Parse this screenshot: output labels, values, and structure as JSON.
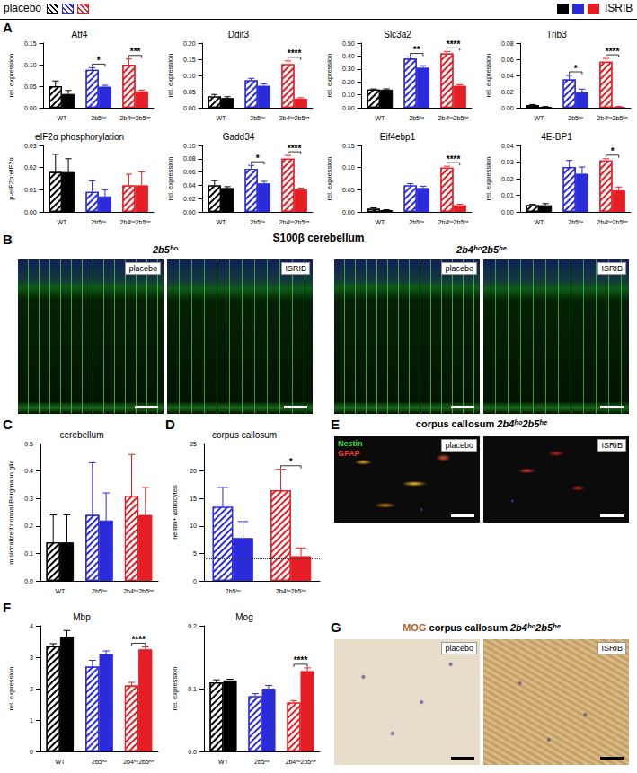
{
  "panel_labels": [
    "A",
    "B",
    "C",
    "D",
    "E",
    "F",
    "G"
  ],
  "chart_data": [
    {
      "type": "bar",
      "title": "Atf4",
      "y_label": "rel. expression",
      "categories": [
        "WT",
        "2b5ʰᵒ",
        "2b4ʰᵒ2b5ʰᵉ"
      ],
      "colors": [
        "#000000",
        "#2b2bd9",
        "#e51e25"
      ],
      "series": [
        {
          "name": "placebo",
          "marker": "hatched",
          "values": [
            0.05,
            0.088,
            0.1
          ],
          "errors": [
            0.012,
            0.005,
            0.013
          ]
        },
        {
          "name": "ISRIB",
          "marker": "solid",
          "values": [
            0.032,
            0.049,
            0.038
          ],
          "errors": [
            0.008,
            0.003,
            0.003
          ]
        }
      ],
      "ylim": [
        0,
        0.15
      ],
      "yticks": [
        {
          "value": 0,
          "label": "0.00"
        },
        0.05,
        {
          "value": 0.1,
          "label": "0.10"
        },
        0.15
      ],
      "annotations": [
        {
          "category": "2b5ʰᵒ",
          "label": "*"
        },
        {
          "category": "2b4ʰᵒ2b5ʰᵉ",
          "label": "***"
        }
      ]
    },
    {
      "type": "bar",
      "title": "Ddit3",
      "y_label": "rel. expression",
      "categories": [
        "WT",
        "2b5ʰᵒ",
        "2b4ʰᵒ2b5ʰᵉ"
      ],
      "colors": [
        "#000000",
        "#2b2bd9",
        "#e51e25"
      ],
      "series": [
        {
          "name": "placebo",
          "marker": "hatched",
          "values": [
            0.035,
            0.085,
            0.135
          ],
          "errors": [
            0.006,
            0.006,
            0.01
          ]
        },
        {
          "name": "ISRIB",
          "marker": "solid",
          "values": [
            0.03,
            0.068,
            0.028
          ],
          "errors": [
            0.004,
            0.006,
            0.003
          ]
        }
      ],
      "ylim": [
        0,
        0.2
      ],
      "yticks": [
        {
          "value": 0,
          "label": "0.00"
        },
        0.05,
        {
          "value": 0.1,
          "label": "0.10"
        },
        0.15,
        {
          "value": 0.2,
          "label": "0.20"
        }
      ],
      "annotations": [
        {
          "category": "2b4ʰᵒ2b5ʰᵉ",
          "label": "****"
        }
      ]
    },
    {
      "type": "bar",
      "title": "Slc3a2",
      "y_label": "rel. expression",
      "categories": [
        "WT",
        "2b5ʰᵒ",
        "2b4ʰᵒ2b5ʰᵉ"
      ],
      "colors": [
        "#000000",
        "#2b2bd9",
        "#e51e25"
      ],
      "series": [
        {
          "name": "placebo",
          "marker": "hatched",
          "values": [
            0.14,
            0.38,
            0.42
          ],
          "errors": [
            0.005,
            0.012,
            0.015
          ]
        },
        {
          "name": "ISRIB",
          "marker": "solid",
          "values": [
            0.14,
            0.31,
            0.17
          ],
          "errors": [
            0.006,
            0.015,
            0.008
          ]
        }
      ],
      "ylim": [
        0,
        0.5
      ],
      "yticks": [
        {
          "value": 0,
          "label": "0.00"
        },
        {
          "value": 0.1,
          "label": "0.10"
        },
        {
          "value": 0.2,
          "label": "0.20"
        },
        {
          "value": 0.3,
          "label": "0.30"
        },
        {
          "value": 0.4,
          "label": "0.40"
        },
        {
          "value": 0.5,
          "label": "0.50"
        }
      ],
      "annotations": [
        {
          "category": "2b5ʰᵒ",
          "label": "**"
        },
        {
          "category": "2b4ʰᵒ2b5ʰᵉ",
          "label": "****"
        }
      ]
    },
    {
      "type": "bar",
      "title": "Trib3",
      "y_label": "rel. expression",
      "categories": [
        "WT",
        "2b5ʰᵒ",
        "2b4ʰᵒ2b5ʰᵉ"
      ],
      "colors": [
        "#000000",
        "#2b2bd9",
        "#e51e25"
      ],
      "series": [
        {
          "name": "placebo",
          "marker": "hatched",
          "values": [
            0.003,
            0.035,
            0.057
          ],
          "errors": [
            0.001,
            0.005,
            0.004
          ]
        },
        {
          "name": "ISRIB",
          "marker": "solid",
          "values": [
            0.001,
            0.019,
            0.001
          ],
          "errors": [
            0.0005,
            0.004,
            0.0005
          ]
        }
      ],
      "ylim": [
        0,
        0.08
      ],
      "yticks": [
        {
          "value": 0,
          "label": "0.00"
        },
        0.02,
        0.04,
        0.06,
        0.08
      ],
      "annotations": [
        {
          "category": "2b5ʰᵒ",
          "label": "*"
        },
        {
          "category": "2b4ʰᵒ2b5ʰᵉ",
          "label": "****"
        }
      ]
    },
    {
      "type": "bar",
      "title": "eIF2α phosphorylation",
      "y_label": "p-eIF2α:eIF2α",
      "categories": [
        "WT",
        "2b5ʰᵒ",
        "2b4ʰᵒ2b5ʰᵉ"
      ],
      "colors": [
        "#000000",
        "#2b2bd9",
        "#e51e25"
      ],
      "series": [
        {
          "name": "placebo",
          "marker": "hatched",
          "values": [
            0.018,
            0.009,
            0.012
          ],
          "errors": [
            0.008,
            0.005,
            0.005
          ]
        },
        {
          "name": "ISRIB",
          "marker": "solid",
          "values": [
            0.018,
            0.007,
            0.012
          ],
          "errors": [
            0.006,
            0.003,
            0.006
          ]
        }
      ],
      "ylim": [
        0,
        0.03
      ],
      "yticks": [
        {
          "value": 0,
          "label": "0.00"
        },
        0.01,
        0.02,
        0.03
      ],
      "annotations": []
    },
    {
      "type": "bar",
      "title": "Gadd34",
      "y_label": "rel. expression",
      "categories": [
        "WT",
        "2b5ʰᵒ",
        "2b4ʰᵒ2b5ʰᵉ"
      ],
      "colors": [
        "#000000",
        "#2b2bd9",
        "#e51e25"
      ],
      "series": [
        {
          "name": "placebo",
          "marker": "hatched",
          "values": [
            0.04,
            0.065,
            0.08
          ],
          "errors": [
            0.007,
            0.005,
            0.005
          ]
        },
        {
          "name": "ISRIB",
          "marker": "solid",
          "values": [
            0.036,
            0.043,
            0.034
          ],
          "errors": [
            0.002,
            0.003,
            0.002
          ]
        }
      ],
      "ylim": [
        0,
        0.1
      ],
      "yticks": [
        {
          "value": 0,
          "label": "0.00"
        },
        0.02,
        0.04,
        0.06,
        0.08,
        {
          "value": 0.1,
          "label": "0.10"
        }
      ],
      "annotations": [
        {
          "category": "2b5ʰᵒ",
          "label": "*"
        },
        {
          "category": "2b4ʰᵒ2b5ʰᵉ",
          "label": "****"
        }
      ]
    },
    {
      "type": "bar",
      "title": "Eif4ebp1",
      "y_label": "rel. expression",
      "categories": [
        "WT",
        "2b5ʰᵒ",
        "2b4ʰᵒ2b5ʰᵉ"
      ],
      "colors": [
        "#000000",
        "#2b2bd9",
        "#e51e25"
      ],
      "series": [
        {
          "name": "placebo",
          "marker": "hatched",
          "values": [
            0.007,
            0.06,
            0.1
          ],
          "errors": [
            0.002,
            0.004,
            0.003
          ]
        },
        {
          "name": "ISRIB",
          "marker": "solid",
          "values": [
            0.004,
            0.054,
            0.015
          ],
          "errors": [
            0.001,
            0.004,
            0.002
          ]
        }
      ],
      "ylim": [
        0,
        0.15
      ],
      "yticks": [
        {
          "value": 0,
          "label": "0.00"
        },
        0.05,
        {
          "value": 0.1,
          "label": "0.10"
        },
        0.15
      ],
      "annotations": [
        {
          "category": "2b4ʰᵒ2b5ʰᵉ",
          "label": "****"
        }
      ]
    },
    {
      "type": "bar",
      "title": "4E-BP1",
      "y_label": "rel. expression",
      "categories": [
        "WT",
        "2b5ʰᵒ",
        "2b4ʰᵒ2b5ʰᵉ"
      ],
      "colors": [
        "#000000",
        "#2b2bd9",
        "#e51e25"
      ],
      "series": [
        {
          "name": "placebo",
          "marker": "hatched",
          "values": [
            0.004,
            0.027,
            0.031
          ],
          "errors": [
            0.0005,
            0.004,
            0.001
          ]
        },
        {
          "name": "ISRIB",
          "marker": "solid",
          "values": [
            0.004,
            0.023,
            0.013
          ],
          "errors": [
            0.001,
            0.004,
            0.002
          ]
        }
      ],
      "ylim": [
        0,
        0.04
      ],
      "yticks": [
        {
          "value": 0,
          "label": "0.00"
        },
        0.01,
        0.02,
        0.03,
        0.04
      ],
      "annotations": [
        {
          "category": "2b4ʰᵒ2b5ʰᵉ",
          "label": "*"
        }
      ]
    },
    {
      "type": "bar",
      "title": "cerebellum",
      "y_label": "mislocalized:normal Bergmann glia",
      "categories": [
        "WT",
        "2b5ʰᵒ",
        "2b4ʰᵒ2b5ʰᵉ"
      ],
      "colors": [
        "#000000",
        "#2b2bd9",
        "#e51e25"
      ],
      "series": [
        {
          "name": "placebo",
          "marker": "hatched",
          "values": [
            0.14,
            0.24,
            0.31
          ],
          "errors": [
            0.1,
            0.19,
            0.15
          ]
        },
        {
          "name": "ISRIB",
          "marker": "solid",
          "values": [
            0.14,
            0.22,
            0.24
          ],
          "errors": [
            0.1,
            0.1,
            0.1
          ]
        }
      ],
      "ylim": [
        0,
        0.5
      ],
      "yticks": [
        {
          "value": 0,
          "label": "0.0"
        },
        0.1,
        0.2,
        0.3,
        0.4,
        0.5
      ],
      "annotations": []
    },
    {
      "type": "bar",
      "title": "corpus callosum",
      "y_label": "nestin+ astrocytes",
      "categories": [
        "2b5ʰᵒ",
        "2b4ʰᵒ2b5ʰᵉ"
      ],
      "colors": [
        "#2b2bd9",
        "#e51e25"
      ],
      "series": [
        {
          "name": "placebo",
          "marker": "hatched",
          "values": [
            13.5,
            16.5
          ],
          "errors": [
            3.5,
            3.8
          ]
        },
        {
          "name": "ISRIB",
          "marker": "solid",
          "values": [
            7.8,
            4.5
          ],
          "errors": [
            3,
            1.5
          ]
        }
      ],
      "hline": 4,
      "ylim": [
        0,
        25
      ],
      "yticks": [
        0,
        5,
        10,
        15,
        20,
        25
      ],
      "annotations": [
        {
          "category": "2b4ʰᵒ2b5ʰᵉ",
          "label": "*"
        }
      ]
    },
    {
      "type": "bar",
      "title": "Mbp",
      "y_label": "rel. expression",
      "categories": [
        "WT",
        "2b5ʰᵒ",
        "2b4ʰᵒ2b5ʰᵉ"
      ],
      "colors": [
        "#000000",
        "#2b2bd9",
        "#e51e25"
      ],
      "series": [
        {
          "name": "placebo",
          "marker": "hatched",
          "values": [
            3.35,
            2.7,
            2.1
          ],
          "errors": [
            0.08,
            0.2,
            0.1
          ]
        },
        {
          "name": "ISRIB",
          "marker": "solid",
          "values": [
            3.65,
            3.1,
            3.25
          ],
          "errors": [
            0.2,
            0.1,
            0.08
          ]
        }
      ],
      "ylim": [
        0,
        4
      ],
      "yticks": [
        0,
        1,
        2,
        3,
        4
      ],
      "annotations": [
        {
          "category": "2b4ʰᵒ2b5ʰᵉ",
          "label": "****"
        }
      ]
    },
    {
      "type": "bar",
      "title": "Mog",
      "y_label": "rel. expression",
      "categories": [
        "WT",
        "2b5ʰᵒ",
        "2b4ʰᵒ2b5ʰᵉ"
      ],
      "colors": [
        "#000000",
        "#2b2bd9",
        "#e51e25"
      ],
      "series": [
        {
          "name": "placebo",
          "marker": "hatched",
          "values": [
            0.11,
            0.088,
            0.078
          ],
          "errors": [
            0.004,
            0.004,
            0.003
          ]
        },
        {
          "name": "ISRIB",
          "marker": "solid",
          "values": [
            0.113,
            0.1,
            0.128
          ],
          "errors": [
            0.002,
            0.005,
            0.005
          ]
        }
      ],
      "ylim": [
        0,
        0.2
      ],
      "yticks": [
        {
          "value": 0,
          "label": "0.0"
        },
        0.1,
        0.2
      ],
      "annotations": [
        {
          "category": "2b4ʰᵒ2b5ʰᵉ",
          "label": "****"
        }
      ]
    }
  ],
  "images": {
    "B": {
      "title": "S100β cerebellum",
      "groups": [
        {
          "label": "2b5ʰᵒ",
          "images": [
            "placebo",
            "ISRIB"
          ]
        },
        {
          "label": "2b4ʰᵒ2b5ʰᵉ",
          "images": [
            "placebo",
            "ISRIB"
          ]
        }
      ]
    },
    "E": {
      "title": "corpus callosum",
      "genotype": "2b4ʰᵒ2b5ʰᵉ",
      "stains": [
        {
          "name": "Nestin",
          "color": "#3ddc3d"
        },
        {
          "name": "GFAP",
          "color": "#ff3030"
        }
      ],
      "images": [
        "placebo",
        "ISRIB"
      ]
    },
    "G": {
      "stain": "MOG",
      "stain_color": "#b5652a",
      "title": "corpus callosum",
      "genotype": "2b4ʰᵒ2b5ʰᵉ",
      "images": [
        "placebo",
        "ISRIB"
      ]
    }
  }
}
